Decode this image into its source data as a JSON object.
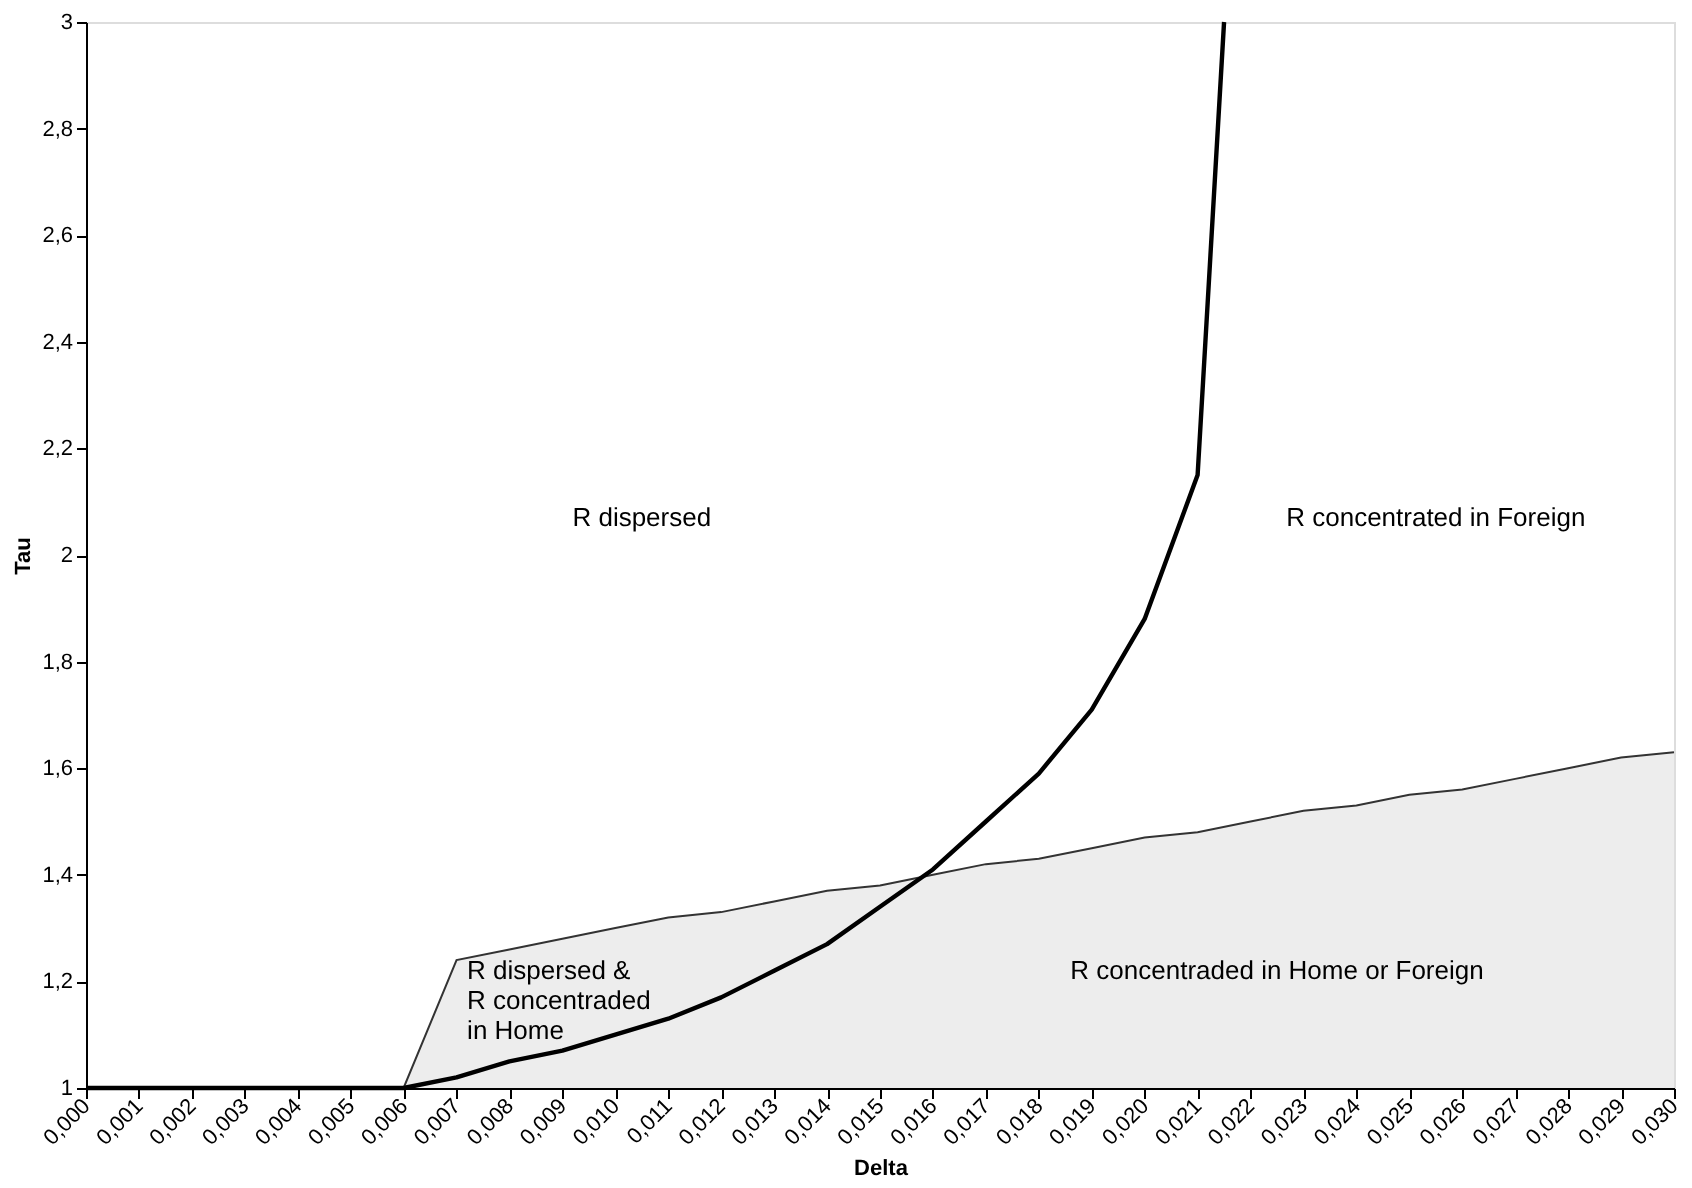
{
  "chart_data": {
    "type": "area",
    "xlabel": "Delta",
    "ylabel": "Tau",
    "x": [
      0.0,
      0.001,
      0.002,
      0.003,
      0.004,
      0.005,
      0.006,
      0.007,
      0.008,
      0.009,
      0.01,
      0.011,
      0.012,
      0.013,
      0.014,
      0.015,
      0.016,
      0.017,
      0.018,
      0.019,
      0.02,
      0.021,
      0.022,
      0.023,
      0.024,
      0.025,
      0.026,
      0.027,
      0.028,
      0.029,
      0.03
    ],
    "xlim": [
      0,
      0.03
    ],
    "xticks": [
      {
        "value": 0.0,
        "label": "0,000"
      },
      {
        "value": 0.001,
        "label": "0,001"
      },
      {
        "value": 0.002,
        "label": "0,002"
      },
      {
        "value": 0.003,
        "label": "0,003"
      },
      {
        "value": 0.004,
        "label": "0,004"
      },
      {
        "value": 0.005,
        "label": "0,005"
      },
      {
        "value": 0.006,
        "label": "0,006"
      },
      {
        "value": 0.007,
        "label": "0,007"
      },
      {
        "value": 0.008,
        "label": "0,008"
      },
      {
        "value": 0.009,
        "label": "0,009"
      },
      {
        "value": 0.01,
        "label": "0,010"
      },
      {
        "value": 0.011,
        "label": "0,011"
      },
      {
        "value": 0.012,
        "label": "0,012"
      },
      {
        "value": 0.013,
        "label": "0,013"
      },
      {
        "value": 0.014,
        "label": "0,014"
      },
      {
        "value": 0.015,
        "label": "0,015"
      },
      {
        "value": 0.016,
        "label": "0,016"
      },
      {
        "value": 0.017,
        "label": "0,017"
      },
      {
        "value": 0.018,
        "label": "0,018"
      },
      {
        "value": 0.019,
        "label": "0,019"
      },
      {
        "value": 0.02,
        "label": "0,020"
      },
      {
        "value": 0.021,
        "label": "0,021"
      },
      {
        "value": 0.022,
        "label": "0,022"
      },
      {
        "value": 0.023,
        "label": "0,023"
      },
      {
        "value": 0.024,
        "label": "0,024"
      },
      {
        "value": 0.025,
        "label": "0,025"
      },
      {
        "value": 0.026,
        "label": "0,026"
      },
      {
        "value": 0.027,
        "label": "0,027"
      },
      {
        "value": 0.028,
        "label": "0,028"
      },
      {
        "value": 0.029,
        "label": "0,029"
      },
      {
        "value": 0.03,
        "label": "0,030"
      }
    ],
    "ylim": [
      1,
      3
    ],
    "yticks": [
      1,
      {
        "value": 1.2,
        "label": "1,2"
      },
      {
        "value": 1.4,
        "label": "1,4"
      },
      {
        "value": 1.6,
        "label": "1,6"
      },
      {
        "value": 1.8,
        "label": "1,8"
      },
      2,
      {
        "value": 2.2,
        "label": "2,2"
      },
      {
        "value": 2.4,
        "label": "2,4"
      },
      {
        "value": 2.6,
        "label": "2,6"
      },
      {
        "value": 2.8,
        "label": "2,8"
      },
      3
    ],
    "series": [
      {
        "color": "#e6e6e6",
        "values": [
          1,
          1,
          1,
          1,
          1,
          1,
          1,
          1.24,
          1.26,
          1.28,
          1.3,
          1.32,
          1.33,
          1.35,
          1.37,
          1.38,
          1.4,
          1.42,
          1.43,
          1.45,
          1.47,
          1.48,
          1.5,
          1.52,
          1.53,
          1.55,
          1.56,
          1.58,
          1.6,
          1.62,
          1.63
        ]
      },
      {
        "type": "line",
        "color": "#000000",
        "x": [
          0.0,
          0.001,
          0.002,
          0.003,
          0.004,
          0.005,
          0.006,
          0.007,
          0.008,
          0.009,
          0.01,
          0.011,
          0.012,
          0.013,
          0.014,
          0.015,
          0.016,
          0.017,
          0.018,
          0.019,
          0.02,
          0.021,
          0.0215
        ],
        "values": [
          1,
          1,
          1,
          1,
          1,
          1,
          1,
          1.02,
          1.05,
          1.07,
          1.1,
          1.13,
          1.17,
          1.22,
          1.27,
          1.34,
          1.41,
          1.5,
          1.59,
          1.71,
          1.88,
          2.15,
          3
        ]
      }
    ],
    "annotations": [
      "R dispersed",
      "R concentrated in Foreign",
      "R dispersed &\nR concentraded\nin Home",
      "R concentraded in Home or Foreign"
    ]
  }
}
